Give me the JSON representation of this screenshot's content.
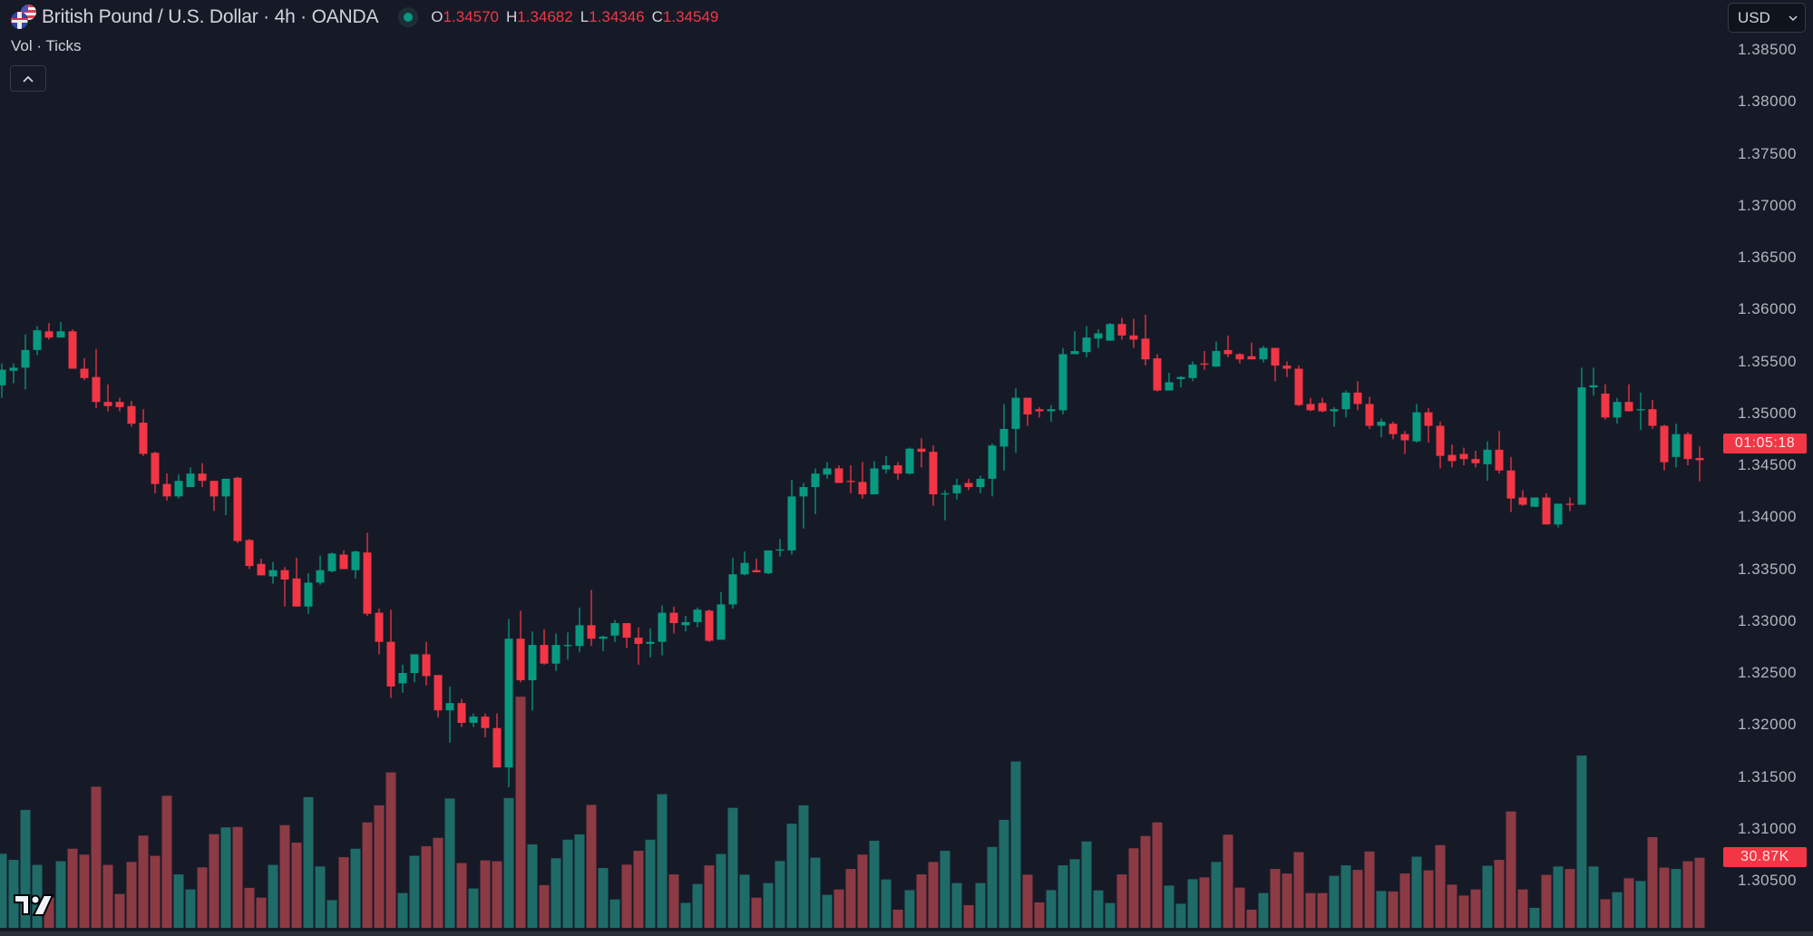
{
  "header": {
    "symbol_title": "British Pound / U.S. Dollar · 4h · OANDA",
    "flag_icons": [
      "us-flag-icon",
      "gb-flag-icon"
    ],
    "market_status": "open",
    "ohlc": [
      {
        "key": "O",
        "value": "1.34570"
      },
      {
        "key": "H",
        "value": "1.34682"
      },
      {
        "key": "L",
        "value": "1.34346"
      },
      {
        "key": "C",
        "value": "1.34549"
      }
    ]
  },
  "indicator_legend": "Vol · Ticks",
  "collapse_button_icon": "chevron-up-icon",
  "currency_select": {
    "value": "USD",
    "icon": "chevron-down-icon"
  },
  "countdown_label": "01:05:18",
  "volume_label": "30.87K",
  "colors": {
    "background": "#161a27",
    "up": "#089981",
    "down": "#f23645",
    "volume_up": "#1f6b68",
    "volume_down": "#8c3a44"
  },
  "chart_data": {
    "type": "candlestick",
    "interval": "4h",
    "price_axis_ticks": [
      "1.38500",
      "1.38000",
      "1.37500",
      "1.37000",
      "1.36500",
      "1.36000",
      "1.35500",
      "1.35000",
      "1.34500",
      "1.34000",
      "1.33500",
      "1.33000",
      "1.32500",
      "1.32000",
      "1.31500",
      "1.31000",
      "1.30500"
    ],
    "ylim": [
      1.3,
      1.3865
    ],
    "candles_ohlc": [
      [
        1.3527,
        1.3548,
        1.3515,
        1.3542
      ],
      [
        1.3541,
        1.3548,
        1.3529,
        1.3544
      ],
      [
        1.3544,
        1.3576,
        1.3523,
        1.3561
      ],
      [
        1.3561,
        1.3584,
        1.3556,
        1.358
      ],
      [
        1.3579,
        1.3587,
        1.3571,
        1.3573
      ],
      [
        1.3573,
        1.3588,
        1.3573,
        1.3579
      ],
      [
        1.3579,
        1.3581,
        1.3543,
        1.3543
      ],
      [
        1.3543,
        1.3553,
        1.3532,
        1.3534
      ],
      [
        1.3535,
        1.3562,
        1.3505,
        1.3511
      ],
      [
        1.3511,
        1.3528,
        1.3502,
        1.3507
      ],
      [
        1.3511,
        1.3515,
        1.3502,
        1.3506
      ],
      [
        1.3507,
        1.3512,
        1.3487,
        1.349
      ],
      [
        1.3491,
        1.3504,
        1.3459,
        1.3461
      ],
      [
        1.3462,
        1.3463,
        1.3423,
        1.3432
      ],
      [
        1.3432,
        1.3442,
        1.3416,
        1.342
      ],
      [
        1.342,
        1.3441,
        1.3418,
        1.3435
      ],
      [
        1.3429,
        1.3448,
        1.3429,
        1.3442
      ],
      [
        1.3442,
        1.3452,
        1.3429,
        1.3435
      ],
      [
        1.3435,
        1.3435,
        1.3406,
        1.342
      ],
      [
        1.342,
        1.3437,
        1.3402,
        1.3437
      ],
      [
        1.3438,
        1.3439,
        1.3375,
        1.3377
      ],
      [
        1.3378,
        1.3379,
        1.335,
        1.3353
      ],
      [
        1.3355,
        1.336,
        1.3344,
        1.3344
      ],
      [
        1.3343,
        1.3357,
        1.3336,
        1.3349
      ],
      [
        1.3349,
        1.3352,
        1.3314,
        1.334
      ],
      [
        1.3341,
        1.3361,
        1.3314,
        1.3314
      ],
      [
        1.3314,
        1.3346,
        1.3307,
        1.3337
      ],
      [
        1.3337,
        1.3363,
        1.3335,
        1.3349
      ],
      [
        1.3348,
        1.3366,
        1.3347,
        1.3365
      ],
      [
        1.3364,
        1.3368,
        1.335,
        1.335
      ],
      [
        1.3349,
        1.3368,
        1.3341,
        1.3367
      ],
      [
        1.3366,
        1.3385,
        1.3305,
        1.3307
      ],
      [
        1.3308,
        1.3312,
        1.3268,
        1.328
      ],
      [
        1.328,
        1.3311,
        1.3226,
        1.3237
      ],
      [
        1.324,
        1.3258,
        1.3231,
        1.325
      ],
      [
        1.325,
        1.3268,
        1.3241,
        1.3268
      ],
      [
        1.3268,
        1.328,
        1.3238,
        1.3247
      ],
      [
        1.3248,
        1.3248,
        1.3207,
        1.3214
      ],
      [
        1.3214,
        1.3237,
        1.3183,
        1.3221
      ],
      [
        1.3221,
        1.3225,
        1.3198,
        1.3202
      ],
      [
        1.3202,
        1.3211,
        1.3198,
        1.3208
      ],
      [
        1.3208,
        1.3211,
        1.3188,
        1.3197
      ],
      [
        1.3197,
        1.3211,
        1.3159,
        1.3159
      ],
      [
        1.3159,
        1.3302,
        1.314,
        1.3283
      ],
      [
        1.3283,
        1.331,
        1.3241,
        1.3243
      ],
      [
        1.3243,
        1.329,
        1.3214,
        1.3277
      ],
      [
        1.3277,
        1.3292,
        1.3258,
        1.3259
      ],
      [
        1.3259,
        1.3288,
        1.3252,
        1.3277
      ],
      [
        1.3276,
        1.3289,
        1.3263,
        1.3277
      ],
      [
        1.3276,
        1.3313,
        1.327,
        1.3296
      ],
      [
        1.3296,
        1.333,
        1.3276,
        1.3283
      ],
      [
        1.3283,
        1.3286,
        1.3271,
        1.3285
      ],
      [
        1.3286,
        1.3301,
        1.328,
        1.3298
      ],
      [
        1.3298,
        1.3298,
        1.3274,
        1.3284
      ],
      [
        1.3284,
        1.3294,
        1.3258,
        1.3278
      ],
      [
        1.3278,
        1.3293,
        1.3265,
        1.328
      ],
      [
        1.328,
        1.3315,
        1.3267,
        1.3308
      ],
      [
        1.3308,
        1.3314,
        1.3288,
        1.3298
      ],
      [
        1.3296,
        1.3305,
        1.329,
        1.3299
      ],
      [
        1.3299,
        1.3313,
        1.3294,
        1.3311
      ],
      [
        1.331,
        1.3311,
        1.328,
        1.3281
      ],
      [
        1.3282,
        1.3328,
        1.3282,
        1.3316
      ],
      [
        1.3316,
        1.3361,
        1.3312,
        1.3345
      ],
      [
        1.3345,
        1.3367,
        1.3344,
        1.3356
      ],
      [
        1.3349,
        1.336,
        1.3347,
        1.3347
      ],
      [
        1.3346,
        1.3368,
        1.3345,
        1.3368
      ],
      [
        1.3368,
        1.3379,
        1.3362,
        1.3369
      ],
      [
        1.3368,
        1.3436,
        1.3364,
        1.342
      ],
      [
        1.342,
        1.3433,
        1.3389,
        1.3429
      ],
      [
        1.3429,
        1.3447,
        1.3403,
        1.3442
      ],
      [
        1.3441,
        1.3453,
        1.3437,
        1.3447
      ],
      [
        1.3447,
        1.345,
        1.3433,
        1.3433
      ],
      [
        1.3435,
        1.345,
        1.3423,
        1.3434
      ],
      [
        1.3434,
        1.3453,
        1.3418,
        1.3422
      ],
      [
        1.3422,
        1.3454,
        1.3422,
        1.3447
      ],
      [
        1.3446,
        1.3459,
        1.3442,
        1.345
      ],
      [
        1.345,
        1.3453,
        1.3436,
        1.3442
      ],
      [
        1.3442,
        1.3467,
        1.3441,
        1.3466
      ],
      [
        1.3466,
        1.3476,
        1.3448,
        1.3463
      ],
      [
        1.3463,
        1.3469,
        1.3411,
        1.3422
      ],
      [
        1.3422,
        1.3426,
        1.3397,
        1.3423
      ],
      [
        1.3423,
        1.3437,
        1.3417,
        1.3431
      ],
      [
        1.3433,
        1.3437,
        1.3426,
        1.3429
      ],
      [
        1.3429,
        1.344,
        1.3423,
        1.3437
      ],
      [
        1.3437,
        1.3471,
        1.342,
        1.3469
      ],
      [
        1.3468,
        1.3509,
        1.3445,
        1.3485
      ],
      [
        1.3485,
        1.3524,
        1.3462,
        1.3515
      ],
      [
        1.3515,
        1.3515,
        1.3488,
        1.3499
      ],
      [
        1.3504,
        1.3506,
        1.3496,
        1.3502
      ],
      [
        1.3502,
        1.3508,
        1.3492,
        1.3504
      ],
      [
        1.3503,
        1.3563,
        1.3499,
        1.3557
      ],
      [
        1.3557,
        1.3579,
        1.3557,
        1.356
      ],
      [
        1.3559,
        1.3584,
        1.3554,
        1.3573
      ],
      [
        1.3572,
        1.3581,
        1.3563,
        1.3577
      ],
      [
        1.357,
        1.3587,
        1.357,
        1.3586
      ],
      [
        1.3586,
        1.3592,
        1.3571,
        1.3575
      ],
      [
        1.3575,
        1.3591,
        1.3563,
        1.3571
      ],
      [
        1.3572,
        1.3595,
        1.3546,
        1.3552
      ],
      [
        1.3553,
        1.3557,
        1.3521,
        1.3522
      ],
      [
        1.3522,
        1.3539,
        1.3522,
        1.353
      ],
      [
        1.3533,
        1.3536,
        1.3525,
        1.3535
      ],
      [
        1.3534,
        1.355,
        1.3531,
        1.3547
      ],
      [
        1.3548,
        1.356,
        1.3542,
        1.3547
      ],
      [
        1.3545,
        1.3569,
        1.3545,
        1.356
      ],
      [
        1.3561,
        1.3575,
        1.3554,
        1.3557
      ],
      [
        1.3557,
        1.3558,
        1.3548,
        1.3552
      ],
      [
        1.3555,
        1.3568,
        1.3552,
        1.3552
      ],
      [
        1.3552,
        1.3565,
        1.3549,
        1.3563
      ],
      [
        1.3563,
        1.3563,
        1.3531,
        1.3546
      ],
      [
        1.3546,
        1.355,
        1.3535,
        1.3543
      ],
      [
        1.3543,
        1.3546,
        1.3507,
        1.3508
      ],
      [
        1.3509,
        1.3515,
        1.3502,
        1.3503
      ],
      [
        1.351,
        1.3515,
        1.3501,
        1.3502
      ],
      [
        1.3502,
        1.3506,
        1.3487,
        1.3504
      ],
      [
        1.3504,
        1.3522,
        1.3496,
        1.352
      ],
      [
        1.352,
        1.3531,
        1.3503,
        1.3509
      ],
      [
        1.3509,
        1.3516,
        1.3485,
        1.3488
      ],
      [
        1.3488,
        1.3495,
        1.3477,
        1.3492
      ],
      [
        1.349,
        1.3492,
        1.3475,
        1.348
      ],
      [
        1.348,
        1.3483,
        1.3461,
        1.3474
      ],
      [
        1.3473,
        1.3509,
        1.3472,
        1.3501
      ],
      [
        1.3501,
        1.3505,
        1.3472,
        1.3488
      ],
      [
        1.3488,
        1.3492,
        1.3447,
        1.3459
      ],
      [
        1.346,
        1.347,
        1.3448,
        1.3454
      ],
      [
        1.3461,
        1.3467,
        1.345,
        1.3456
      ],
      [
        1.3456,
        1.3464,
        1.3448,
        1.3452
      ],
      [
        1.3451,
        1.3473,
        1.3435,
        1.3465
      ],
      [
        1.3465,
        1.3483,
        1.3442,
        1.3445
      ],
      [
        1.3445,
        1.3458,
        1.3405,
        1.3418
      ],
      [
        1.3419,
        1.3426,
        1.3411,
        1.3412
      ],
      [
        1.341,
        1.3419,
        1.341,
        1.3419
      ],
      [
        1.3419,
        1.3423,
        1.3393,
        1.3393
      ],
      [
        1.3393,
        1.3413,
        1.339,
        1.3413
      ],
      [
        1.3413,
        1.3419,
        1.3406,
        1.3412
      ],
      [
        1.3412,
        1.3544,
        1.3412,
        1.3525
      ],
      [
        1.3525,
        1.3544,
        1.3517,
        1.3527
      ],
      [
        1.3519,
        1.3528,
        1.3494,
        1.3496
      ],
      [
        1.3496,
        1.3515,
        1.349,
        1.3511
      ],
      [
        1.3511,
        1.3528,
        1.3502,
        1.3502
      ],
      [
        1.3503,
        1.352,
        1.3484,
        1.3504
      ],
      [
        1.3504,
        1.3513,
        1.3485,
        1.3488
      ],
      [
        1.3488,
        1.3489,
        1.3445,
        1.3453
      ],
      [
        1.3458,
        1.349,
        1.3448,
        1.348
      ],
      [
        1.348,
        1.3482,
        1.345,
        1.3456
      ],
      [
        1.3457,
        1.34682,
        1.34346,
        1.34549
      ]
    ],
    "volume_k": [
      32.6,
      29.9,
      51.9,
      27.7,
      13.3,
      29.3,
      34.8,
      32.2,
      62.1,
      27.7,
      14.9,
      29.0,
      40.6,
      31.7,
      58.1,
      23.5,
      16.9,
      26.6,
      41.2,
      44.2,
      44.4,
      17.6,
      13.3,
      27.7,
      45.2,
      37.5,
      57.5,
      27.0,
      12.2,
      31.1,
      34.8,
      46.4,
      53.9,
      68.4,
      15.3,
      31.7,
      35.9,
      39.6,
      56.9,
      28.5,
      17.3,
      29.7,
      29.3,
      57.1,
      101.7,
      36.7,
      18.8,
      30.6,
      38.8,
      41.1,
      54.1,
      26.3,
      12.5,
      27.8,
      33.9,
      38.8,
      58.8,
      23.5,
      11.0,
      19.3,
      27.5,
      32.5,
      52.8,
      23.4,
      13.3,
      19.7,
      29.4,
      45.8,
      53.9,
      30.9,
      14.5,
      16.9,
      25.9,
      32.2,
      38.3,
      21.3,
      8.0,
      16.6,
      23.5,
      29.0,
      33.9,
      19.7,
      10.0,
      19.7,
      35.6,
      47.5,
      73.2,
      23.4,
      11.2,
      16.6,
      27.5,
      30.2,
      38.0,
      16.5,
      10.9,
      23.5,
      35.0,
      40.4,
      46.4,
      18.6,
      10.6,
      21.4,
      22.2,
      29.0,
      41.0,
      17.7,
      8.0,
      15.3,
      25.9,
      23.9,
      33.3,
      15.3,
      15.3,
      22.9,
      27.5,
      25.5,
      33.6,
      16.2,
      16.0,
      23.9,
      31.3,
      25.3,
      36.4,
      19.0,
      14.2,
      16.9,
      27.3,
      29.9,
      51.2,
      16.9,
      8.8,
      23.3,
      27.0,
      25.9,
      75.8,
      27.0,
      12.6,
      15.7,
      21.8,
      20.6,
      39.9,
      26.5,
      25.9,
      29.3,
      30.87
    ]
  }
}
